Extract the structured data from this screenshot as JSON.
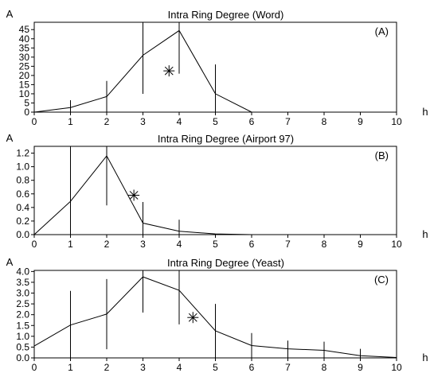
{
  "chart_data": [
    {
      "type": "line",
      "title": "Intra Ring Degree (Word)",
      "panel_label": "(A)",
      "ylabel": "A",
      "xlabel": "h",
      "xlim": [
        0,
        10
      ],
      "ylim": [
        0,
        49
      ],
      "xticks": [
        "0",
        "1",
        "2",
        "3",
        "4",
        "5",
        "6",
        "7",
        "8",
        "9",
        "10"
      ],
      "yticks": [
        "0",
        "5",
        "10",
        "15",
        "20",
        "25",
        "30",
        "35",
        "40",
        "45"
      ],
      "yticks_values": [
        0,
        5,
        10,
        15,
        20,
        25,
        30,
        35,
        40,
        45
      ],
      "series": [
        {
          "x": [
            0,
            1,
            2,
            3,
            4,
            5,
            6,
            7,
            8,
            9,
            10
          ],
          "values": [
            0,
            2.5,
            8.5,
            31,
            44.5,
            10,
            0,
            0,
            0,
            0,
            0
          ]
        }
      ],
      "error_bars": [
        {
          "x": 1,
          "low": 0,
          "high": 6.5
        },
        {
          "x": 2,
          "low": 0,
          "high": 17
        },
        {
          "x": 3,
          "low": 10,
          "high": 51
        },
        {
          "x": 4,
          "low": 21,
          "high": 51
        },
        {
          "x": 5,
          "low": 0,
          "high": 26
        }
      ],
      "marker": {
        "x": 3.72,
        "y": 22.5
      }
    },
    {
      "type": "line",
      "title": "Intra Ring Degree (Airport 97)",
      "panel_label": "(B)",
      "ylabel": "A",
      "xlabel": "h",
      "xlim": [
        0,
        10
      ],
      "ylim": [
        0,
        1.3
      ],
      "xticks": [
        "0",
        "1",
        "2",
        "3",
        "4",
        "5",
        "6",
        "7",
        "8",
        "9",
        "10"
      ],
      "yticks": [
        "0.0",
        "0.2",
        "0.4",
        "0.6",
        "0.8",
        "1.0",
        "1.2"
      ],
      "yticks_values": [
        0,
        0.2,
        0.4,
        0.6,
        0.8,
        1.0,
        1.2
      ],
      "series": [
        {
          "x": [
            0,
            1,
            2,
            3,
            4,
            5,
            6,
            7,
            8,
            9,
            10
          ],
          "values": [
            0,
            0.49,
            1.16,
            0.17,
            0.05,
            0.01,
            0,
            0,
            0,
            0,
            0
          ]
        }
      ],
      "error_bars": [
        {
          "x": 1,
          "low": 0,
          "high": 1.3
        },
        {
          "x": 2,
          "low": 0.43,
          "high": 1.3
        },
        {
          "x": 3,
          "low": 0,
          "high": 0.48
        },
        {
          "x": 4,
          "low": 0,
          "high": 0.22
        }
      ],
      "marker": {
        "x": 2.75,
        "y": 0.58
      }
    },
    {
      "type": "line",
      "title": "Intra Ring Degree (Yeast)",
      "panel_label": "(C)",
      "ylabel": "A",
      "xlabel": "h",
      "xlim": [
        0,
        10
      ],
      "ylim": [
        0,
        4.05
      ],
      "xticks": [
        "0",
        "1",
        "2",
        "3",
        "4",
        "5",
        "6",
        "7",
        "8",
        "9",
        "10"
      ],
      "yticks": [
        "0.0",
        "0.5",
        "1.0",
        "1.5",
        "2.0",
        "2.5",
        "3.0",
        "3.5",
        "4.0"
      ],
      "yticks_values": [
        0,
        0.5,
        1.0,
        1.5,
        2.0,
        2.5,
        3.0,
        3.5,
        4.0
      ],
      "series": [
        {
          "x": [
            0,
            1,
            2,
            3,
            4,
            5,
            6,
            7,
            8,
            9,
            10
          ],
          "values": [
            0.55,
            1.52,
            2.03,
            3.75,
            3.13,
            1.25,
            0.57,
            0.42,
            0.35,
            0.1,
            0.02
          ]
        }
      ],
      "error_bars": [
        {
          "x": 1,
          "low": 0,
          "high": 3.1
        },
        {
          "x": 2,
          "low": 0.4,
          "high": 3.65
        },
        {
          "x": 3,
          "low": 2.1,
          "high": 4.05
        },
        {
          "x": 4,
          "low": 1.55,
          "high": 4.05
        },
        {
          "x": 5,
          "low": 0,
          "high": 2.5
        },
        {
          "x": 6,
          "low": 0,
          "high": 1.15
        },
        {
          "x": 7,
          "low": 0,
          "high": 0.8
        },
        {
          "x": 8,
          "low": 0,
          "high": 0.75
        },
        {
          "x": 9,
          "low": 0,
          "high": 0.42
        }
      ],
      "marker": {
        "x": 4.38,
        "y": 1.87
      }
    }
  ]
}
